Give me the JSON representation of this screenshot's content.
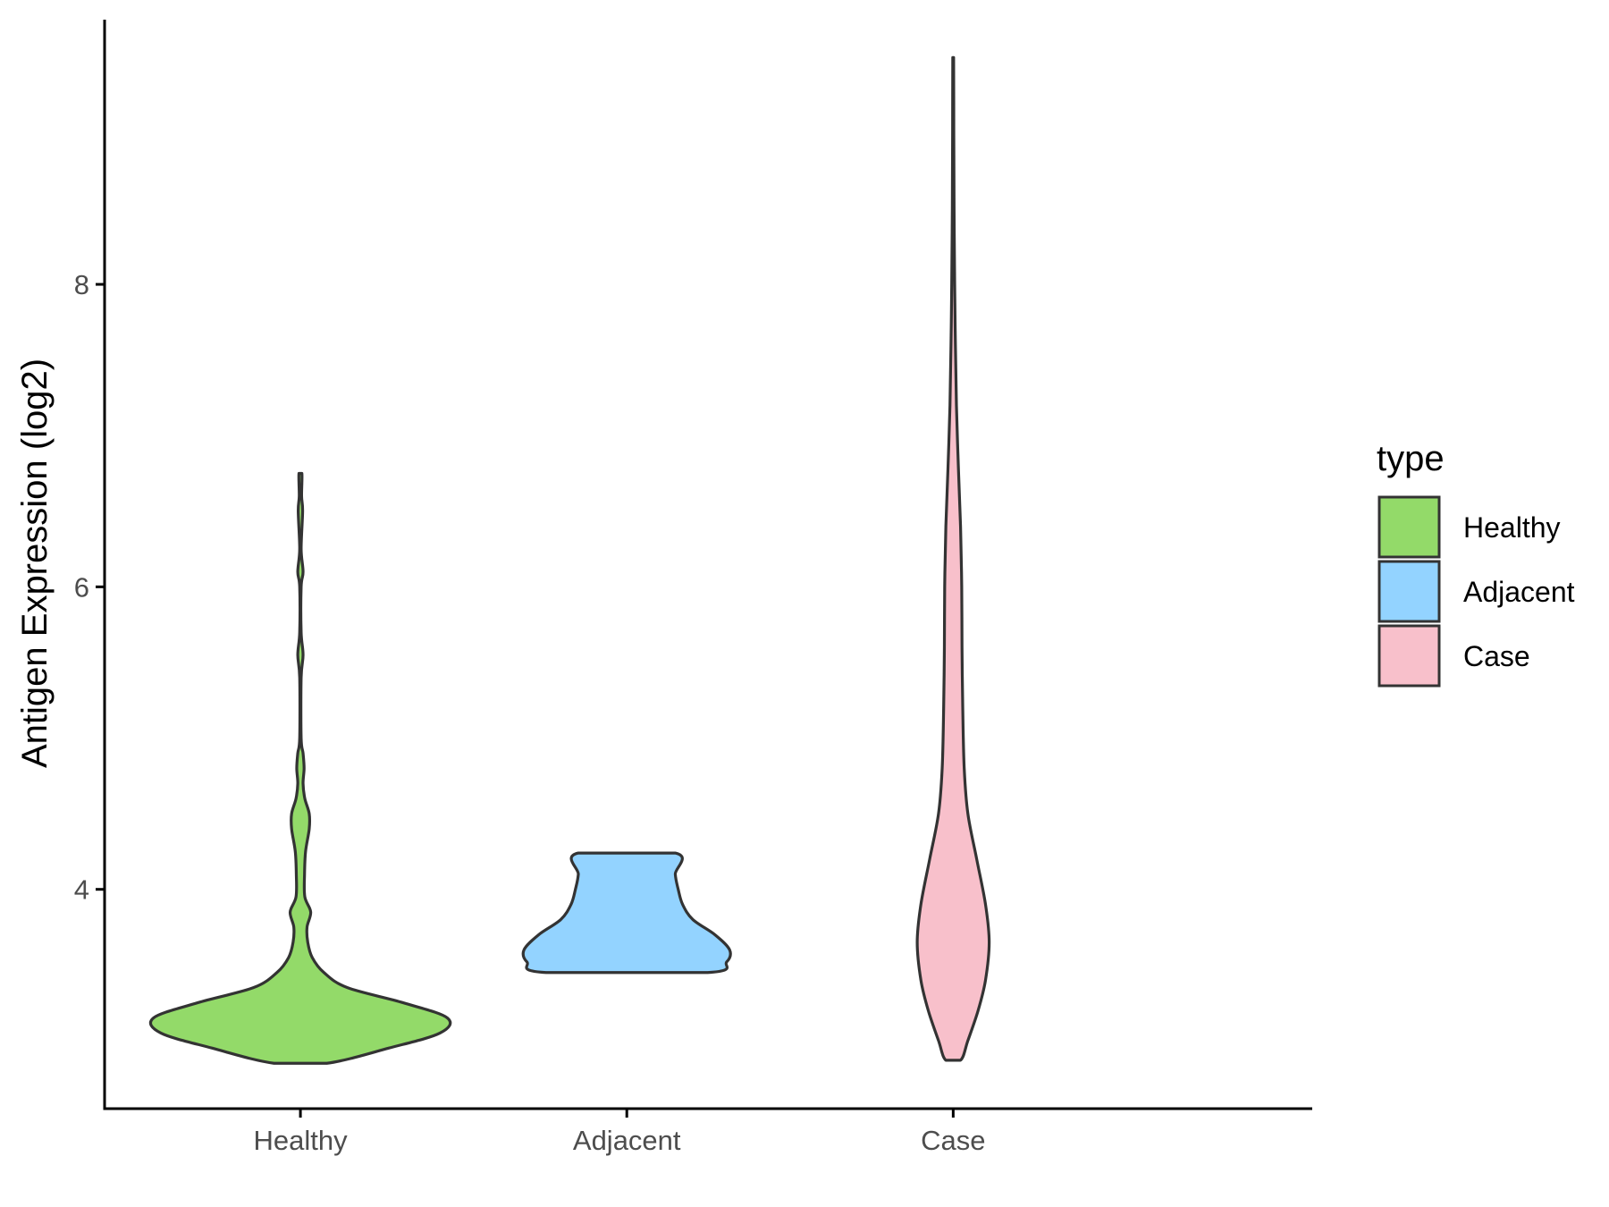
{
  "chart_data": {
    "type": "violin",
    "title": "",
    "xlabel": "",
    "ylabel": "Antigen Expression (log2)",
    "categories": [
      "Healthy",
      "Adjacent",
      "Case"
    ],
    "y_ticks": [
      4,
      6,
      8
    ],
    "y_tick_labels": [
      "4",
      "6",
      "8"
    ],
    "ylim": [
      2.55,
      9.75
    ],
    "grid": false,
    "legend": {
      "title": "type",
      "position": "right",
      "entries": [
        {
          "label": "Healthy",
          "color": "#93DA69"
        },
        {
          "label": "Adjacent",
          "color": "#93D3FF"
        },
        {
          "label": "Case",
          "color": "#F8C0CB"
        }
      ]
    },
    "outline_color": "#333333",
    "series": [
      {
        "category": "Healthy",
        "color": "#93DA69",
        "profile": [
          [
            2.85,
            0.18
          ],
          [
            2.95,
            0.6
          ],
          [
            3.05,
            0.95
          ],
          [
            3.15,
            1.0
          ],
          [
            3.25,
            0.7
          ],
          [
            3.35,
            0.32
          ],
          [
            3.45,
            0.16
          ],
          [
            3.55,
            0.08
          ],
          [
            3.65,
            0.05
          ],
          [
            3.75,
            0.045
          ],
          [
            3.85,
            0.07
          ],
          [
            3.95,
            0.03
          ],
          [
            4.1,
            0.028
          ],
          [
            4.25,
            0.035
          ],
          [
            4.4,
            0.06
          ],
          [
            4.5,
            0.06
          ],
          [
            4.6,
            0.03
          ],
          [
            4.7,
            0.018
          ],
          [
            4.8,
            0.025
          ],
          [
            4.9,
            0.018
          ],
          [
            5.0,
            0.005
          ],
          [
            5.4,
            0.005
          ],
          [
            5.55,
            0.018
          ],
          [
            5.7,
            0.005
          ],
          [
            6.0,
            0.005
          ],
          [
            6.1,
            0.018
          ],
          [
            6.25,
            0.005
          ],
          [
            6.5,
            0.015
          ],
          [
            6.6,
            0.008
          ],
          [
            6.75,
            0.01
          ]
        ]
      },
      {
        "category": "Adjacent",
        "color": "#93D3FF",
        "profile": [
          [
            3.45,
            0.55
          ],
          [
            3.52,
            0.68
          ],
          [
            3.6,
            0.7
          ],
          [
            3.7,
            0.6
          ],
          [
            3.8,
            0.45
          ],
          [
            3.9,
            0.38
          ],
          [
            4.0,
            0.35
          ],
          [
            4.1,
            0.33
          ],
          [
            4.24,
            0.33
          ]
        ]
      },
      {
        "category": "Case",
        "color": "#F8C0CB",
        "profile": [
          [
            2.87,
            0.05
          ],
          [
            3.0,
            0.1
          ],
          [
            3.2,
            0.17
          ],
          [
            3.4,
            0.22
          ],
          [
            3.65,
            0.245
          ],
          [
            3.9,
            0.22
          ],
          [
            4.2,
            0.16
          ],
          [
            4.5,
            0.1
          ],
          [
            4.8,
            0.075
          ],
          [
            5.2,
            0.065
          ],
          [
            5.6,
            0.06
          ],
          [
            6.0,
            0.058
          ],
          [
            6.4,
            0.05
          ],
          [
            6.8,
            0.035
          ],
          [
            7.2,
            0.022
          ],
          [
            7.6,
            0.015
          ],
          [
            8.0,
            0.01
          ],
          [
            8.5,
            0.006
          ],
          [
            9.0,
            0.004
          ],
          [
            9.5,
            0.003
          ]
        ]
      }
    ]
  }
}
